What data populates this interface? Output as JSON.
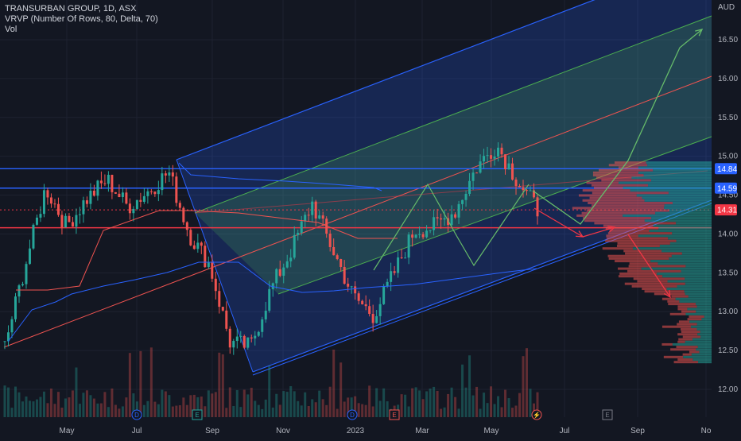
{
  "legend": {
    "symbol": "TRANSURBAN GROUP, 1D, ASX",
    "indicator": "VRVP (Number Of Rows, 80, Delta, 70)",
    "volume": "Vol"
  },
  "currency": "AUD",
  "colors": {
    "background": "#131722",
    "bull": "#26a69a",
    "bear": "#ef5350",
    "channel_blue": "#2962ff",
    "channel_green": "#4caf50",
    "arrow_green": "#66bb6a",
    "arrow_red": "#f23645",
    "level_red": "#f23645",
    "level_blue": "#2962ff"
  },
  "chart_data": {
    "type": "line",
    "title": "TRANSURBAN GROUP, 1D, ASX",
    "ylabel": "AUD",
    "ylim": [
      11.9,
      16.85
    ],
    "x_ticks": [
      "May",
      "Jul",
      "Sep",
      "Nov",
      "2023",
      "Mar",
      "May",
      "Jul",
      "Sep",
      "No"
    ],
    "y_ticks": [
      12.0,
      12.5,
      13.0,
      13.5,
      14.0,
      14.5,
      15.0,
      15.5,
      16.0,
      16.5
    ],
    "price_series": {
      "name": "Close",
      "x": [
        "Apr",
        "May",
        "May",
        "Jun",
        "Jun",
        "Jul",
        "Jul",
        "Aug",
        "Aug",
        "Sep",
        "Sep",
        "Oct",
        "Oct",
        "Nov",
        "Nov",
        "Dec",
        "Dec",
        "2023",
        "Jan",
        "Feb",
        "Feb",
        "Mar",
        "Mar",
        "Apr",
        "May",
        "May",
        "Jun"
      ],
      "values": [
        12.55,
        13.6,
        14.6,
        14.1,
        14.45,
        14.7,
        14.35,
        14.55,
        14.8,
        14.0,
        13.6,
        12.6,
        12.55,
        13.3,
        13.8,
        14.4,
        13.8,
        13.2,
        12.95,
        13.5,
        14.05,
        14.1,
        14.3,
        14.85,
        15.15,
        14.7,
        14.31
      ]
    },
    "horizontal_levels": [
      {
        "price": 14.84,
        "label": "14.84",
        "color": "#2962ff"
      },
      {
        "price": 14.59,
        "label": "14.59",
        "color": "#2962ff"
      },
      {
        "price": 14.31,
        "label": "14.31",
        "color": "#f23645"
      },
      {
        "price": 14.08,
        "label": "",
        "color": "#f23645"
      }
    ],
    "channel": {
      "type": "parallel-channel",
      "colors": [
        "#2962ff",
        "#4caf50"
      ]
    },
    "projection_green": [
      14.55,
      14.05,
      16.7
    ],
    "projection_red": [
      14.55,
      14.0,
      13.1
    ],
    "zigzag": [
      13.85,
      15.1,
      13.6,
      14.9
    ],
    "events": [
      {
        "label": "D",
        "month": "Aug"
      },
      {
        "label": "E",
        "month": "Aug"
      },
      {
        "label": "D",
        "month": "2023"
      },
      {
        "label": "E",
        "month": "Feb"
      },
      {
        "label": "E",
        "month": "Aug"
      }
    ]
  }
}
